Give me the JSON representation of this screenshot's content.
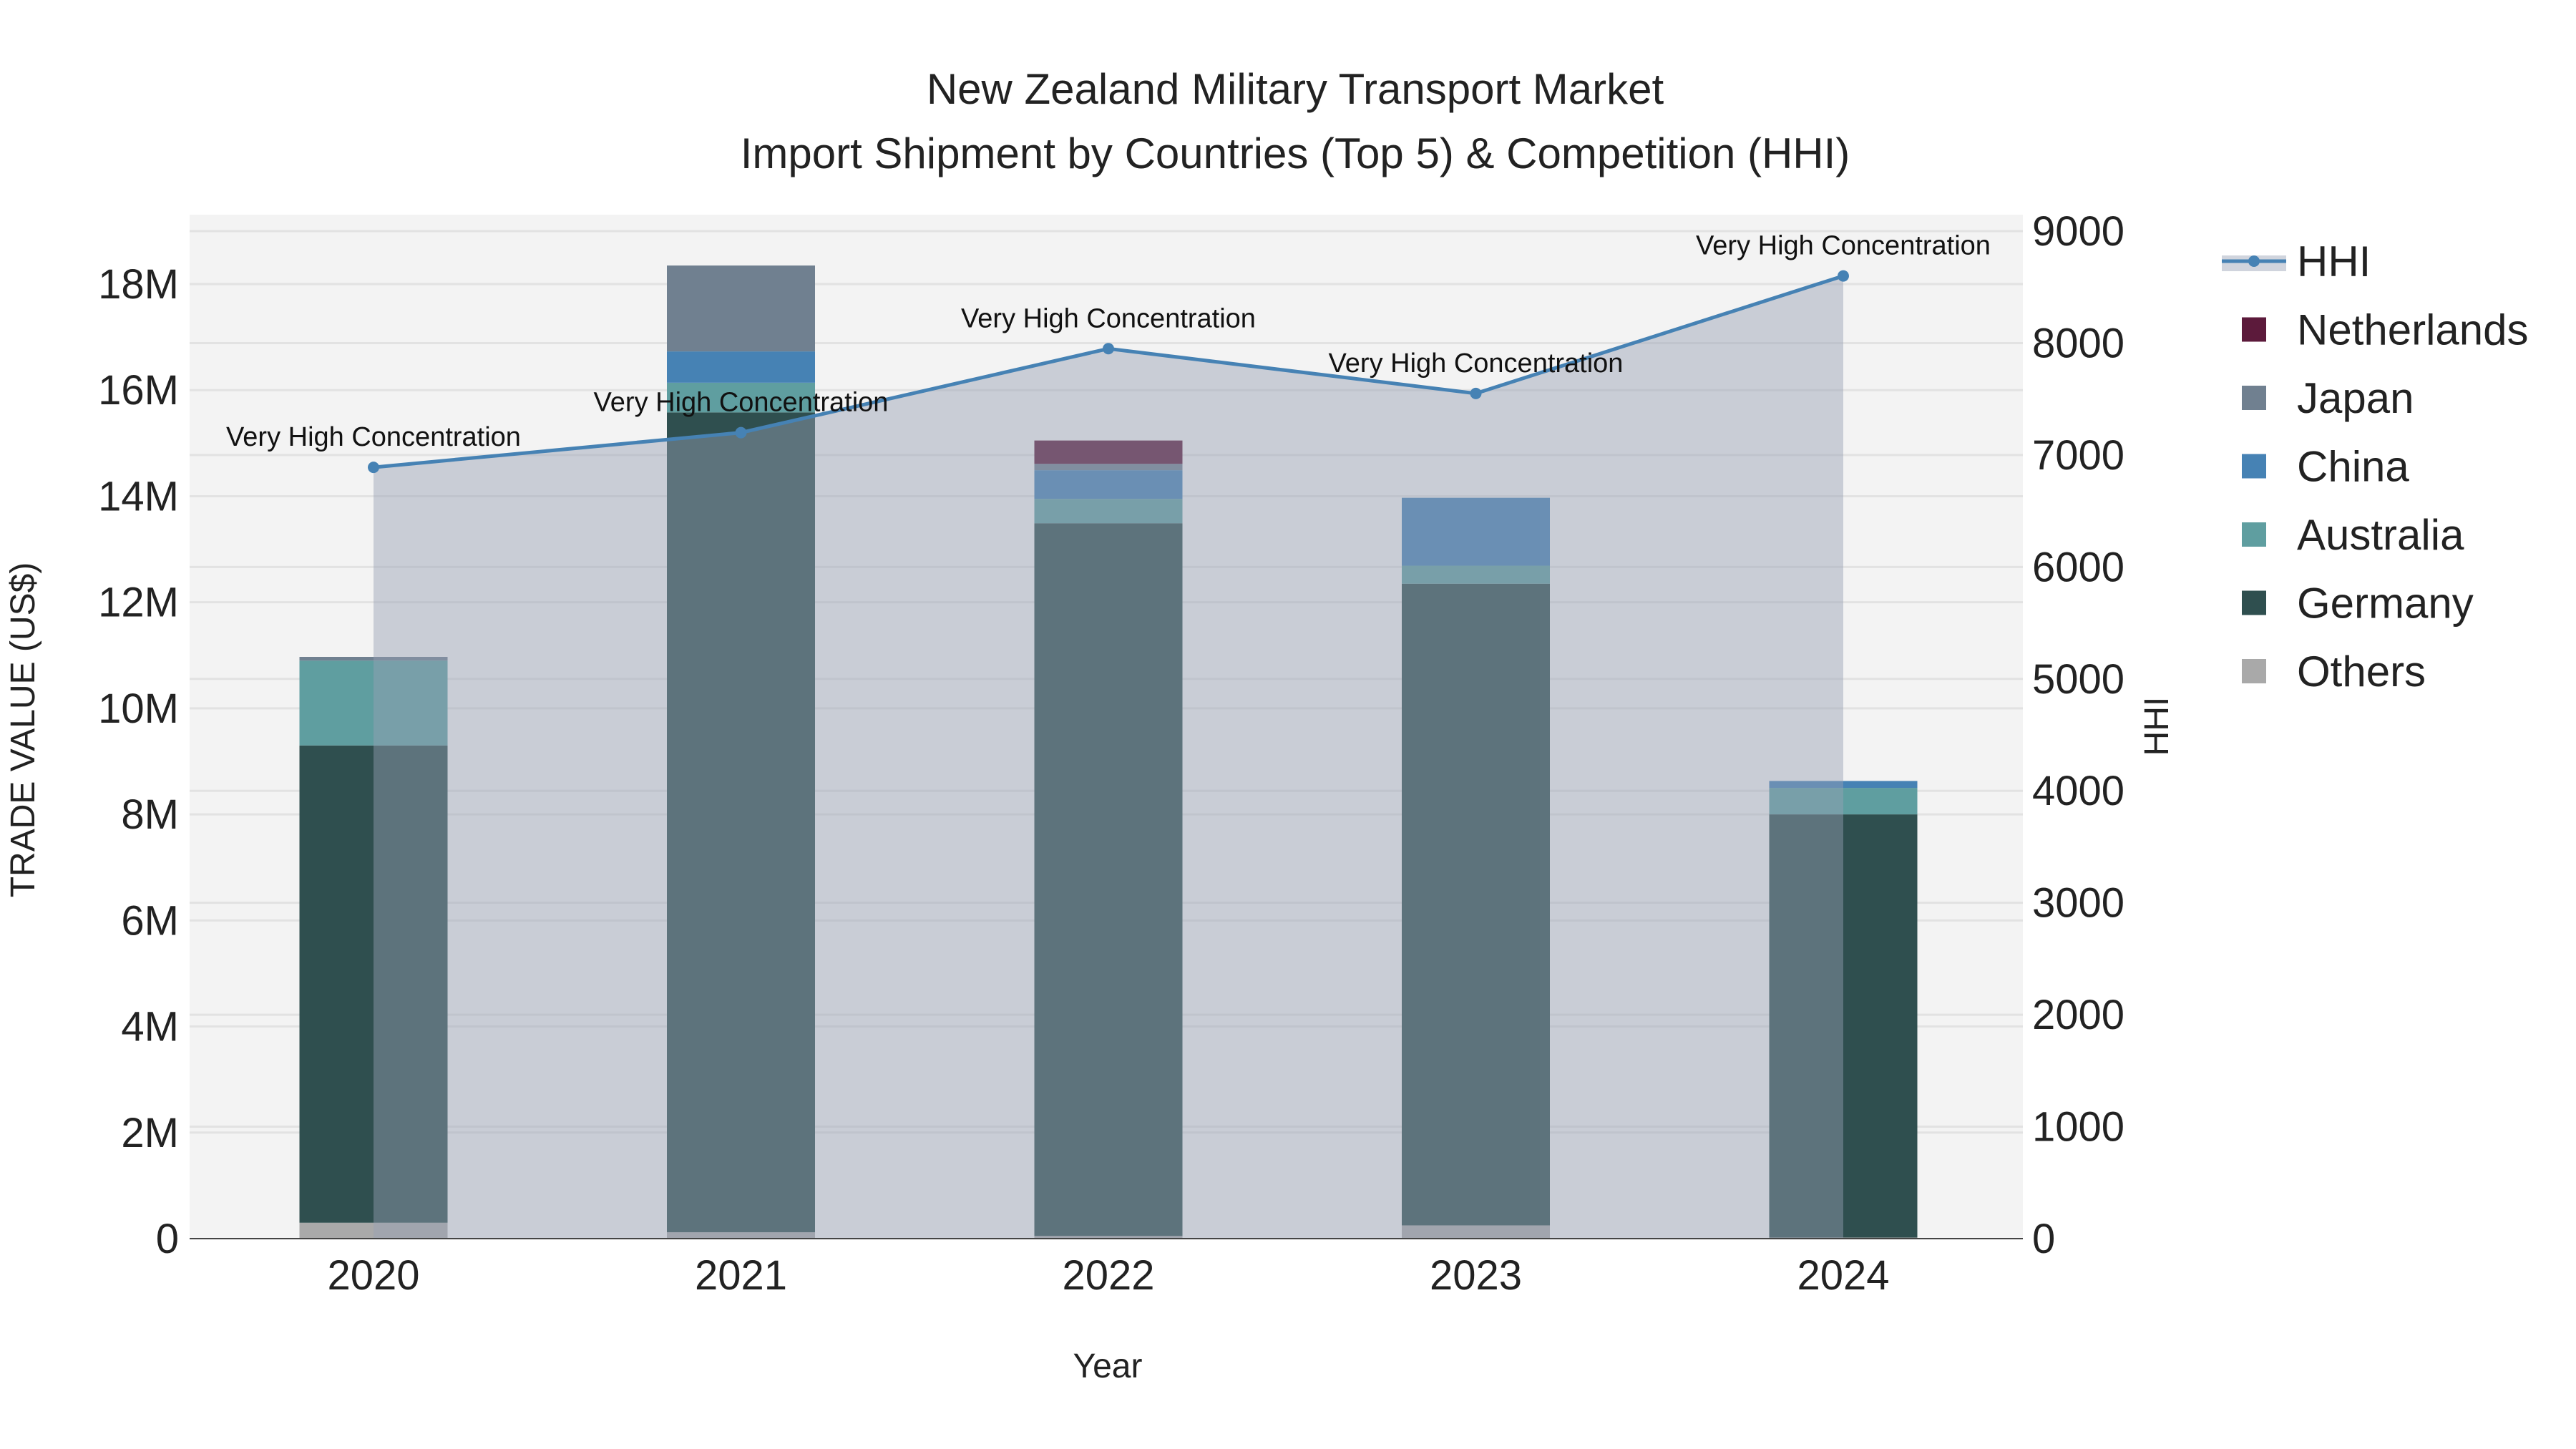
{
  "chart_data": {
    "type": "bar",
    "stacked": true,
    "title": "New Zealand Military Transport Market",
    "subtitle": "Import Shipment by Countries (Top 5) & Competition (HHI)",
    "xlabel": "Year",
    "ylabel": "TRADE VALUE (US$)",
    "y2label": "HHI",
    "categories": [
      "2020",
      "2021",
      "2022",
      "2023",
      "2024"
    ],
    "ylim": [
      0,
      19200000
    ],
    "y_ticks": [
      0,
      2000000,
      4000000,
      6000000,
      8000000,
      10000000,
      12000000,
      14000000,
      16000000,
      18000000
    ],
    "y_tick_labels": [
      "0",
      "2M",
      "4M",
      "6M",
      "8M",
      "10M",
      "12M",
      "14M",
      "16M",
      "18M"
    ],
    "y2lim": [
      0,
      9150
    ],
    "y2_ticks": [
      0,
      1000,
      2000,
      3000,
      4000,
      5000,
      6000,
      7000,
      8000,
      9000
    ],
    "y2_tick_labels": [
      "0",
      "1000",
      "2000",
      "3000",
      "4000",
      "5000",
      "6000",
      "7000",
      "8000",
      "9000"
    ],
    "grid": true,
    "legend_position": "right",
    "series": [
      {
        "name": "Others",
        "color": "#a9a9a9",
        "values": [
          300000,
          120000,
          50000,
          250000,
          20000
        ]
      },
      {
        "name": "Germany",
        "color": "#2f4f4f",
        "values": [
          9000000,
          15460000,
          13440000,
          12100000,
          7980000
        ]
      },
      {
        "name": "Australia",
        "color": "#5f9ea0",
        "values": [
          1600000,
          560000,
          460000,
          340000,
          500000
        ]
      },
      {
        "name": "China",
        "color": "#4682b4",
        "values": [
          0,
          590000,
          540000,
          1280000,
          130000
        ]
      },
      {
        "name": "Japan",
        "color": "#708090",
        "values": [
          70000,
          1620000,
          120000,
          0,
          0
        ]
      },
      {
        "name": "Netherlands",
        "color": "#5c1a3b",
        "values": [
          0,
          0,
          440000,
          0,
          0
        ]
      }
    ],
    "hhi": {
      "name": "HHI",
      "color": "#4682b4",
      "values": [
        6890,
        7200,
        7950,
        7550,
        8600
      ],
      "annotations": [
        "Very High Concentration",
        "Very High Concentration",
        "Very High Concentration",
        "Very High Concentration",
        "Very High Concentration"
      ]
    },
    "legend_order": [
      "HHI",
      "Netherlands",
      "Japan",
      "China",
      "Australia",
      "Germany",
      "Others"
    ]
  }
}
